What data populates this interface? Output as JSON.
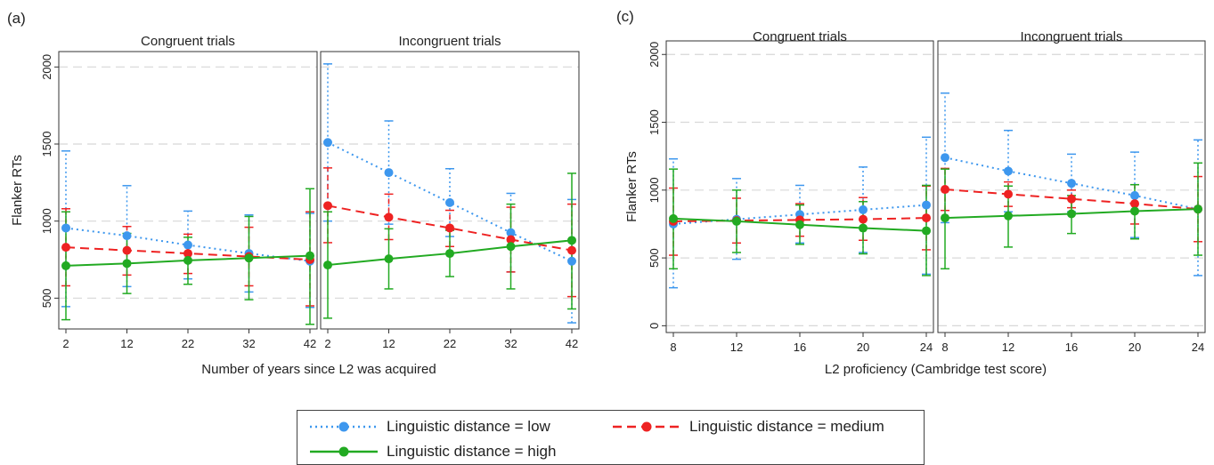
{
  "colors": {
    "low": "#3d97ee",
    "medium": "#ee2222",
    "high": "#22aa22"
  },
  "legend": [
    {
      "key": "low",
      "label": "Linguistic distance = low"
    },
    {
      "key": "medium",
      "label": "Linguistic distance = medium"
    },
    {
      "key": "high",
      "label": "Linguistic distance = high"
    }
  ],
  "chart_data": [
    {
      "type": "line",
      "panel_label": "(a)",
      "xlabel": "Number of years since L2 was acquired",
      "ylabel": "Flanker RTs",
      "ylim": [
        300,
        2100
      ],
      "yticks": [
        500,
        1000,
        1500,
        2000
      ],
      "grid": true,
      "legend_position": "bottom",
      "facets": [
        {
          "title": "Congruent trials",
          "x": [
            2,
            12,
            22,
            32,
            42
          ],
          "series": [
            {
              "key": "low",
              "name": "Linguistic distance = low",
              "values": [
                955,
                905,
                845,
                790,
                740
              ],
              "ci_low": [
                445,
                575,
                625,
                540,
                440
              ],
              "ci_high": [
                1455,
                1230,
                1065,
                1040,
                1050
              ]
            },
            {
              "key": "medium",
              "name": "Linguistic distance = medium",
              "values": [
                830,
                810,
                790,
                770,
                750
              ],
              "ci_low": [
                580,
                650,
                660,
                580,
                450
              ],
              "ci_high": [
                1080,
                965,
                915,
                960,
                1060
              ]
            },
            {
              "key": "high",
              "name": "Linguistic distance = high",
              "values": [
                710,
                725,
                745,
                760,
                775
              ],
              "ci_low": [
                360,
                530,
                590,
                490,
                330
              ],
              "ci_high": [
                1060,
                920,
                895,
                1030,
                1210
              ]
            }
          ]
        },
        {
          "title": "Incongruent trials",
          "x": [
            2,
            12,
            22,
            32,
            42
          ],
          "series": [
            {
              "key": "low",
              "name": "Linguistic distance = low",
              "values": [
                1510,
                1315,
                1120,
                925,
                740
              ],
              "ci_low": [
                1000,
                980,
                900,
                670,
                340
              ],
              "ci_high": [
                2020,
                1650,
                1340,
                1180,
                1140
              ]
            },
            {
              "key": "medium",
              "name": "Linguistic distance = medium",
              "values": [
                1100,
                1025,
                955,
                880,
                810
              ],
              "ci_low": [
                860,
                880,
                835,
                670,
                510
              ],
              "ci_high": [
                1345,
                1175,
                1070,
                1090,
                1110
              ]
            },
            {
              "key": "high",
              "name": "Linguistic distance = high",
              "values": [
                715,
                755,
                790,
                835,
                875
              ],
              "ci_low": [
                370,
                560,
                640,
                560,
                430
              ],
              "ci_high": [
                1060,
                950,
                940,
                1110,
                1310
              ]
            }
          ]
        }
      ]
    },
    {
      "type": "line",
      "panel_label": "(c)",
      "xlabel": "L2 proficiency (Cambridge test score)",
      "ylabel": "Flanker RTs",
      "ylim": [
        -50,
        2100
      ],
      "yticks": [
        0,
        500,
        1000,
        1500,
        2000
      ],
      "grid": true,
      "legend_position": "bottom",
      "facets": [
        {
          "title": "Congruent trials",
          "x": [
            8,
            12,
            16,
            20,
            24
          ],
          "series": [
            {
              "key": "low",
              "name": "Linguistic distance = low",
              "values": [
                750,
                785,
                820,
                855,
                890
              ],
              "ci_low": [
                280,
                490,
                610,
                540,
                380
              ],
              "ci_high": [
                1230,
                1085,
                1035,
                1170,
                1390
              ]
            },
            {
              "key": "medium",
              "name": "Linguistic distance = medium",
              "values": [
                770,
                775,
                780,
                785,
                795
              ],
              "ci_low": [
                520,
                610,
                660,
                630,
                560
              ],
              "ci_high": [
                1015,
                940,
                900,
                945,
                1030
              ]
            },
            {
              "key": "high",
              "name": "Linguistic distance = high",
              "values": [
                790,
                770,
                745,
                720,
                700
              ],
              "ci_low": [
                420,
                540,
                600,
                530,
                370
              ],
              "ci_high": [
                1155,
                1000,
                890,
                915,
                1035
              ]
            }
          ]
        },
        {
          "title": "Incongruent trials",
          "x": [
            8,
            12,
            16,
            20,
            24
          ],
          "series": [
            {
              "key": "low",
              "name": "Linguistic distance = low",
              "values": [
                1240,
                1140,
                1050,
                960,
                860
              ],
              "ci_low": [
                760,
                840,
                840,
                650,
                370
              ],
              "ci_high": [
                1715,
                1440,
                1265,
                1280,
                1370
              ]
            },
            {
              "key": "medium",
              "name": "Linguistic distance = medium",
              "values": [
                1005,
                970,
                935,
                900,
                860
              ],
              "ci_low": [
                850,
                880,
                870,
                750,
                620
              ],
              "ci_high": [
                1160,
                1060,
                1000,
                1040,
                1100
              ]
            },
            {
              "key": "high",
              "name": "Linguistic distance = high",
              "values": [
                795,
                810,
                825,
                845,
                860
              ],
              "ci_low": [
                420,
                580,
                680,
                640,
                520
              ],
              "ci_high": [
                1155,
                1030,
                960,
                1040,
                1200
              ]
            }
          ]
        }
      ]
    }
  ]
}
